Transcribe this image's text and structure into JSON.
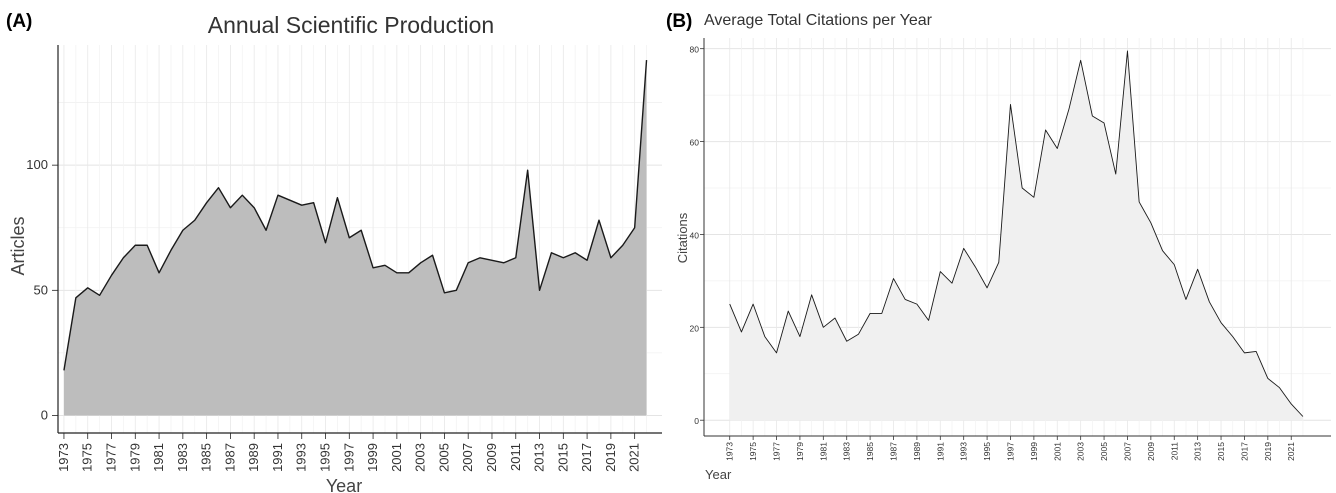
{
  "chart_data": [
    {
      "type": "area",
      "panel_label": "(A)",
      "title": "Annual Scientific Production",
      "xlabel": "Year",
      "ylabel": "Articles",
      "x": [
        1973,
        1974,
        1975,
        1976,
        1977,
        1978,
        1979,
        1980,
        1981,
        1982,
        1983,
        1984,
        1985,
        1986,
        1987,
        1988,
        1989,
        1990,
        1991,
        1992,
        1993,
        1994,
        1995,
        1996,
        1997,
        1998,
        1999,
        2000,
        2001,
        2002,
        2003,
        2004,
        2005,
        2006,
        2007,
        2008,
        2009,
        2010,
        2011,
        2012,
        2013,
        2014,
        2015,
        2016,
        2017,
        2018,
        2019,
        2020,
        2021,
        2022
      ],
      "values": [
        18,
        47,
        51,
        48,
        56,
        63,
        68,
        68,
        57,
        66,
        74,
        78,
        85,
        91,
        83,
        88,
        83,
        74,
        88,
        86,
        84,
        85,
        69,
        87,
        71,
        74,
        59,
        60,
        57,
        57,
        61,
        64,
        49,
        50,
        61,
        63,
        62,
        61,
        63,
        98,
        50,
        65,
        63,
        65,
        62,
        78,
        63,
        68,
        75,
        142
      ],
      "xticks": [
        1973,
        1975,
        1977,
        1979,
        1981,
        1983,
        1985,
        1987,
        1989,
        1991,
        1993,
        1995,
        1997,
        1999,
        2001,
        2003,
        2005,
        2007,
        2009,
        2011,
        2013,
        2015,
        2017,
        2019,
        2021
      ],
      "yticks": [
        0,
        50,
        100
      ],
      "xlim": [
        1972.5,
        2023.3
      ],
      "ylim": [
        -7,
        148
      ],
      "fill_color": "#bdbdbd",
      "line_color": "#1a1a1a",
      "grid": true
    },
    {
      "type": "area",
      "panel_label": "(B)",
      "title": "Average Total Citations per Year",
      "xlabel": "Year",
      "ylabel": "Citations",
      "x": [
        1973,
        1974,
        1975,
        1976,
        1977,
        1978,
        1979,
        1980,
        1981,
        1982,
        1983,
        1984,
        1985,
        1986,
        1987,
        1988,
        1989,
        1990,
        1991,
        1992,
        1993,
        1994,
        1995,
        1996,
        1997,
        1998,
        1999,
        2000,
        2001,
        2002,
        2003,
        2004,
        2005,
        2006,
        2007,
        2008,
        2009,
        2010,
        2011,
        2012,
        2013,
        2014,
        2015,
        2016,
        2017,
        2018,
        2019,
        2020,
        2021,
        2022
      ],
      "values": [
        25,
        19,
        25,
        18,
        14.5,
        23.5,
        18,
        27,
        20,
        22,
        17,
        18.5,
        23,
        23,
        30.5,
        26,
        25,
        21.5,
        32,
        29.5,
        37,
        33,
        28.5,
        34,
        68,
        50,
        48,
        62.5,
        58.5,
        67,
        77.5,
        65.5,
        64,
        53,
        79.5,
        47,
        42.5,
        36.5,
        33.5,
        26,
        32.5,
        25.5,
        21,
        18,
        14.5,
        14.8,
        9,
        7,
        3.5,
        0.8
      ],
      "xticks": [
        1973,
        1975,
        1977,
        1979,
        1981,
        1983,
        1985,
        1987,
        1989,
        1991,
        1993,
        1995,
        1997,
        1999,
        2001,
        2003,
        2005,
        2007,
        2009,
        2011,
        2013,
        2015,
        2017,
        2019,
        2021
      ],
      "yticks": [
        0,
        20,
        40,
        60,
        80
      ],
      "xlim": [
        1970.8,
        2024.4
      ],
      "ylim": [
        -3.4,
        82.3
      ],
      "fill_color": "#f0f0f0",
      "line_color": "#1a1a1a",
      "grid": true
    }
  ]
}
